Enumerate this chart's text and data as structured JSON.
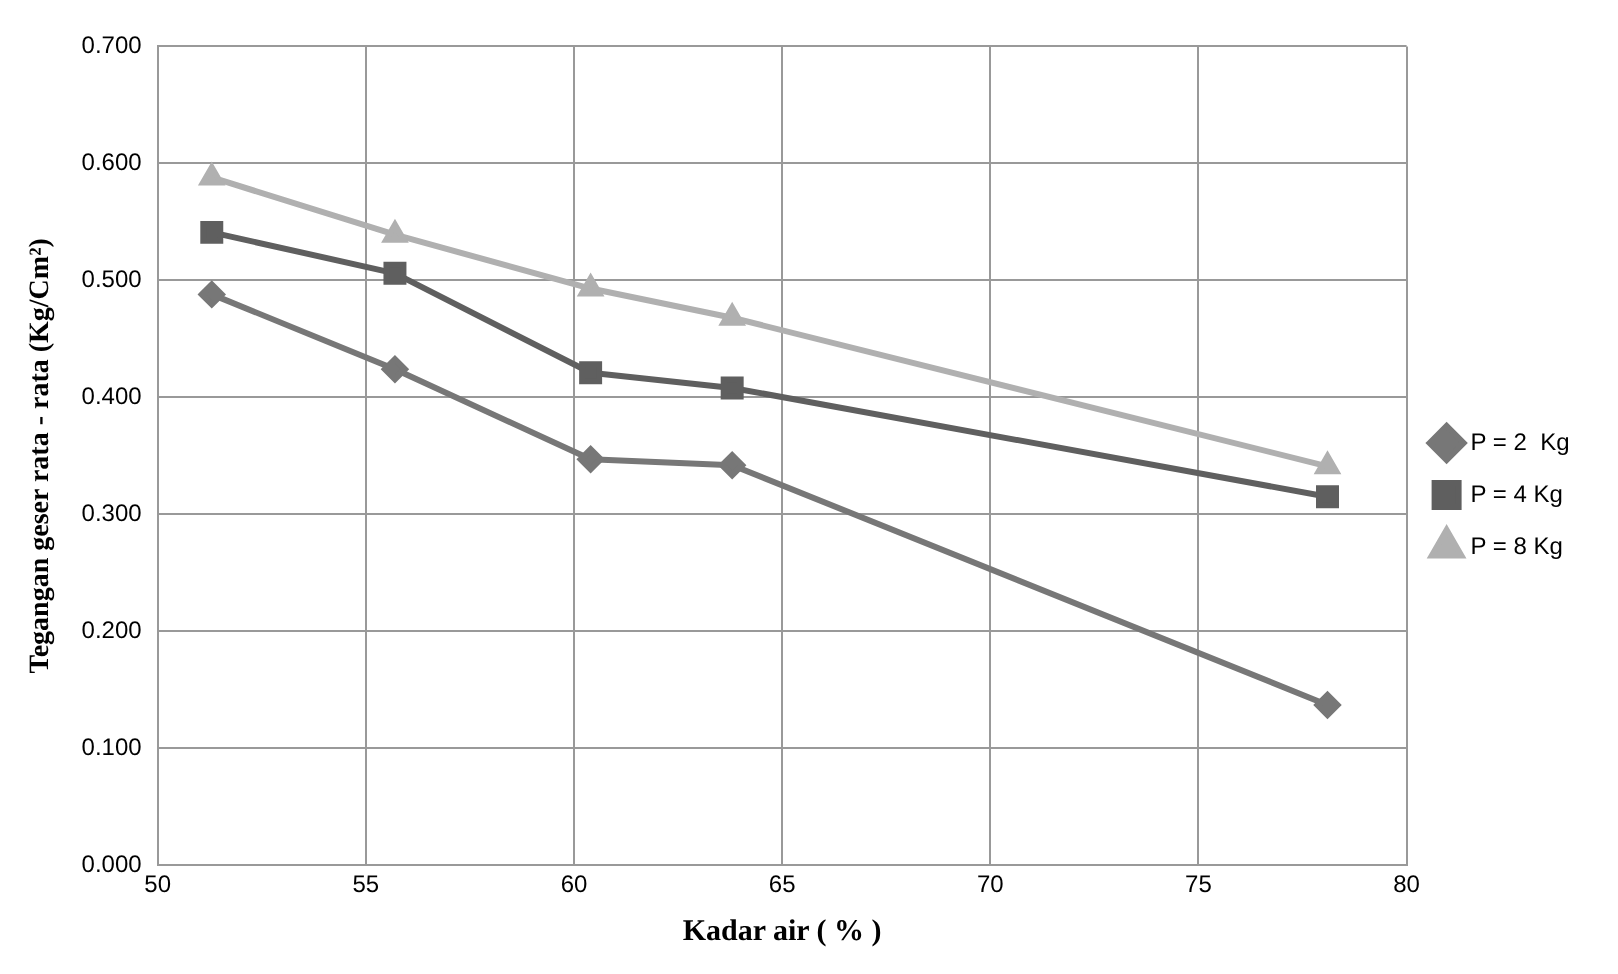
{
  "chart_data": {
    "type": "line",
    "xlabel": "Kadar air ( % )",
    "ylabel": "Tegangan geser rata - rata (Kg/Cm²)",
    "x": [
      51.3,
      55.7,
      60.4,
      63.8,
      78.1
    ],
    "series": [
      {
        "name": "P = 2  Kg",
        "color": "#777777",
        "marker": "diamond",
        "values": [
          0.488,
          0.424,
          0.347,
          0.342,
          0.137
        ]
      },
      {
        "name": "P = 4 Kg",
        "color": "#5f5f5f",
        "marker": "square",
        "values": [
          0.541,
          0.506,
          0.421,
          0.408,
          0.315
        ]
      },
      {
        "name": "P = 8 Kg",
        "color": "#b0b0b0",
        "marker": "triangle",
        "values": [
          0.588,
          0.539,
          0.493,
          0.468,
          0.341
        ]
      }
    ],
    "xlim": [
      50,
      80
    ],
    "xticks": [
      50,
      55,
      60,
      65,
      70,
      75,
      80
    ],
    "ylim": [
      0,
      0.7
    ],
    "yticks": [
      {
        "value": 0,
        "label": "0.000"
      },
      {
        "value": 0.1,
        "label": "0.100"
      },
      {
        "value": 0.2,
        "label": "0.200"
      },
      {
        "value": 0.3,
        "label": "0.300"
      },
      {
        "value": 0.4,
        "label": "0.400"
      },
      {
        "value": 0.5,
        "label": "0.500"
      },
      {
        "value": 0.6,
        "label": "0.600"
      },
      {
        "value": 0.7,
        "label": "0.700"
      }
    ],
    "grid": true,
    "legend": "right",
    "line_style": "solid"
  }
}
